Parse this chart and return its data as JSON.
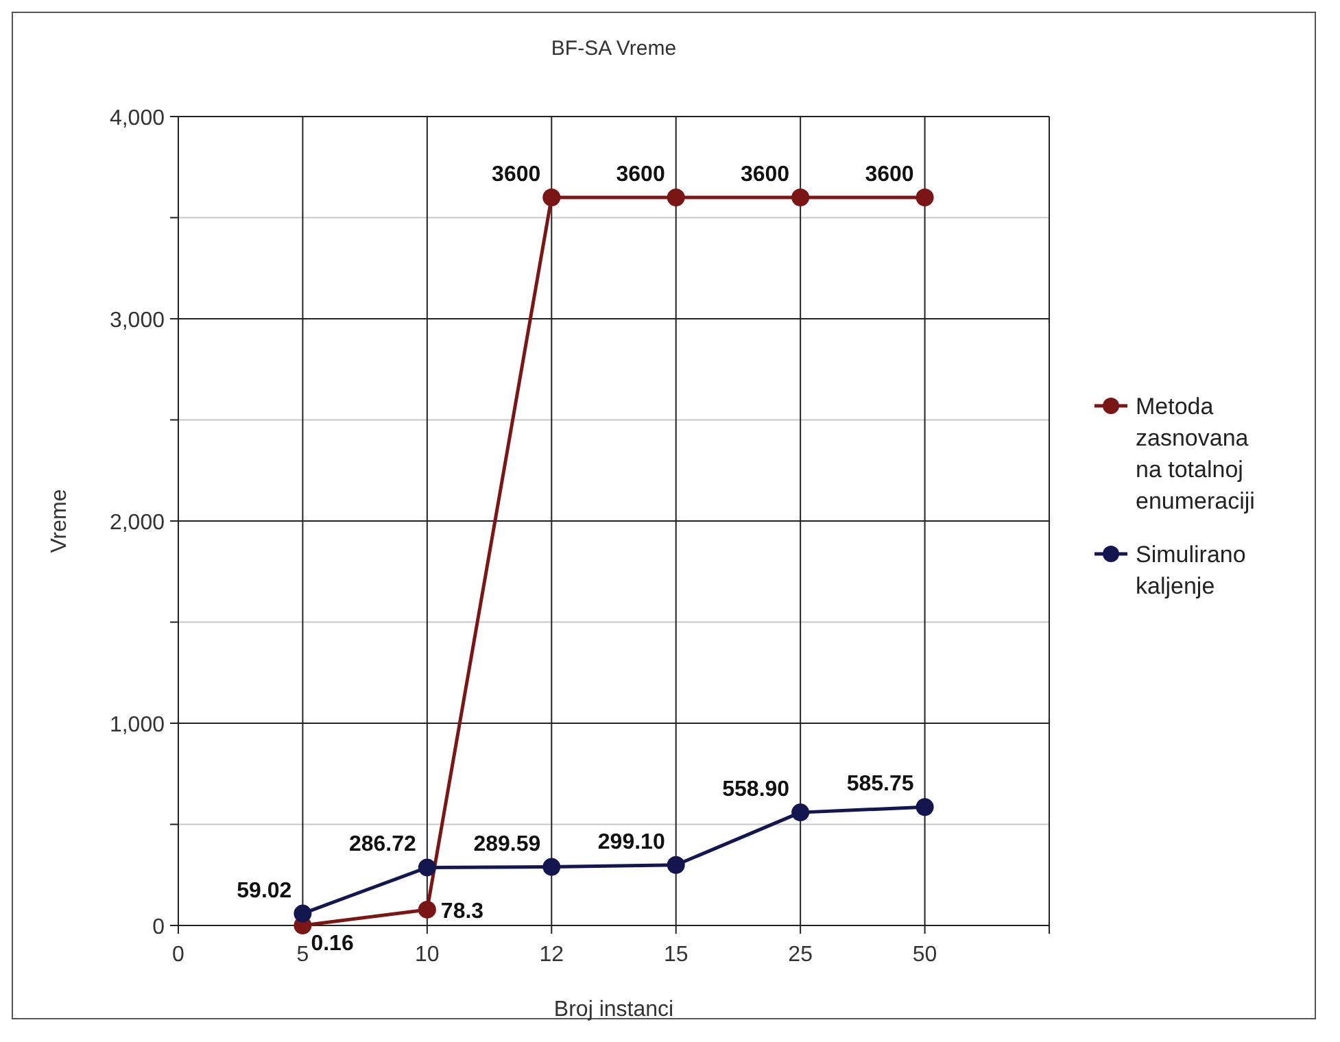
{
  "chart_data": {
    "type": "line",
    "title": "BF-SA Vreme",
    "xlabel": "Broj instanci",
    "ylabel": "Vreme",
    "categories": [
      "0",
      "5",
      "10",
      "12",
      "15",
      "25",
      "50",
      null
    ],
    "series": [
      {
        "name": "Metoda zasnovana na totalnoj enumeraciji",
        "color": "#7b1616",
        "values": [
          null,
          0.16,
          78.3,
          3600,
          3600,
          3600,
          3600,
          null
        ],
        "value_labels": [
          null,
          "0.16",
          "78.3",
          "3600",
          "3600",
          "3600",
          "3600",
          null
        ]
      },
      {
        "name": "Simulirano kaljenje",
        "color": "#141650",
        "values": [
          null,
          59.02,
          286.72,
          289.59,
          299.1,
          558.9,
          585.75,
          null
        ],
        "value_labels": [
          null,
          "59.02",
          "286.72",
          "289.59",
          "299.10",
          "558.90",
          "585.75",
          null
        ]
      }
    ],
    "ylim": [
      0,
      4000
    ],
    "yticks": [
      {
        "value": 0,
        "label": "0"
      },
      {
        "value": 500,
        "label": null
      },
      {
        "value": 1000,
        "label": "1,000"
      },
      {
        "value": 1500,
        "label": null
      },
      {
        "value": 2000,
        "label": "2,000"
      },
      {
        "value": 2500,
        "label": null
      },
      {
        "value": 3000,
        "label": "3,000"
      },
      {
        "value": 3500,
        "label": null
      },
      {
        "value": 4000,
        "label": "4,000"
      }
    ],
    "grid": true,
    "legend": "right",
    "marker": "circle",
    "line_style": "solid"
  }
}
